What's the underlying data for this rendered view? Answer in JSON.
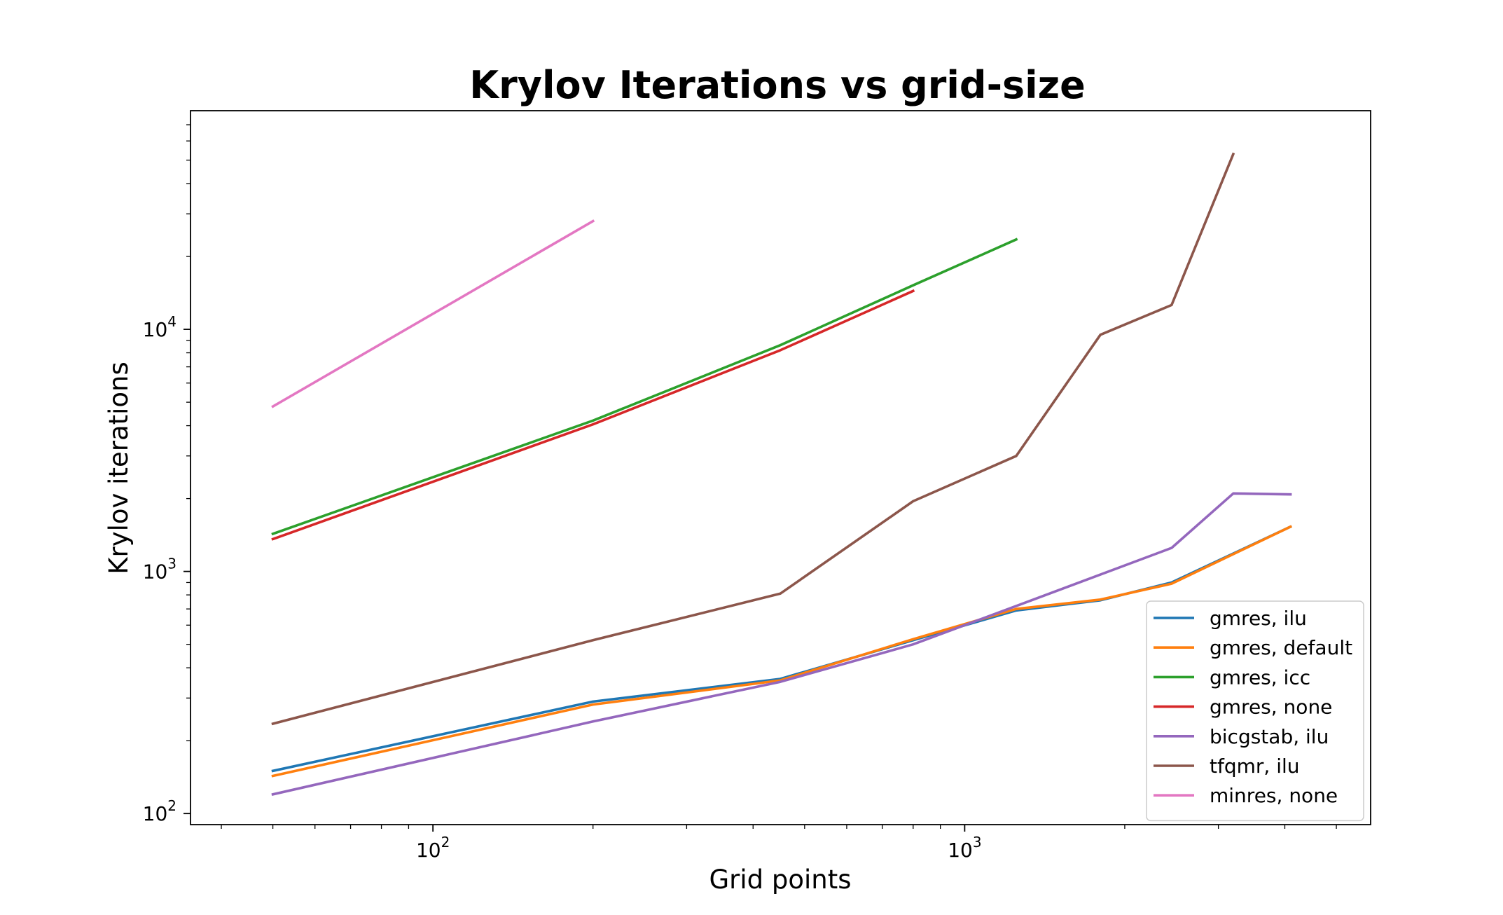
{
  "chart_data": {
    "type": "line",
    "title": "Krylov Iterations vs grid-size",
    "xlabel": "Grid points",
    "ylabel": "Krylov iterations",
    "xscale": "log",
    "yscale": "log",
    "xlim": [
      35,
      5800
    ],
    "ylim": [
      90,
      80000
    ],
    "x_ticks": [
      {
        "value": 100,
        "base": "10",
        "exp": "2"
      },
      {
        "value": 1000,
        "base": "10",
        "exp": "3"
      }
    ],
    "y_ticks": [
      {
        "value": 100,
        "base": "10",
        "exp": "2"
      },
      {
        "value": 1000,
        "base": "10",
        "exp": "3"
      },
      {
        "value": 10000,
        "base": "10",
        "exp": "4"
      }
    ],
    "grid": false,
    "legend_position": "lower-right",
    "series": [
      {
        "name": "gmres, ilu",
        "color": "#1f77b4",
        "x": [
          50,
          200,
          450,
          800,
          1250,
          1800,
          2450,
          4100
        ],
        "y": [
          150,
          290,
          360,
          520,
          690,
          760,
          900,
          1530
        ]
      },
      {
        "name": "gmres, default",
        "color": "#ff7f0e",
        "x": [
          50,
          200,
          450,
          800,
          1250,
          1800,
          2450,
          4100
        ],
        "y": [
          143,
          282,
          355,
          525,
          700,
          765,
          890,
          1530
        ]
      },
      {
        "name": "gmres, icc",
        "color": "#2ca02c",
        "x": [
          50,
          200,
          450,
          800,
          1250
        ],
        "y": [
          1430,
          4200,
          8600,
          15200,
          23500
        ]
      },
      {
        "name": "gmres, none",
        "color": "#d62728",
        "x": [
          50,
          200,
          450,
          800
        ],
        "y": [
          1360,
          4050,
          8200,
          14400
        ]
      },
      {
        "name": "bicgstab, ilu",
        "color": "#9467bd",
        "x": [
          50,
          200,
          450,
          800,
          1250,
          2450,
          3200,
          4100
        ],
        "y": [
          120,
          240,
          350,
          500,
          720,
          1250,
          2100,
          2080
        ]
      },
      {
        "name": "tfqmr, ilu",
        "color": "#8c564b",
        "x": [
          50,
          200,
          450,
          800,
          1250,
          1800,
          2450,
          3200
        ],
        "y": [
          235,
          520,
          810,
          1950,
          3000,
          9500,
          12600,
          53000
        ]
      },
      {
        "name": "minres, none",
        "color": "#e377c2",
        "x": [
          50,
          200
        ],
        "y": [
          4800,
          28000
        ]
      }
    ]
  }
}
